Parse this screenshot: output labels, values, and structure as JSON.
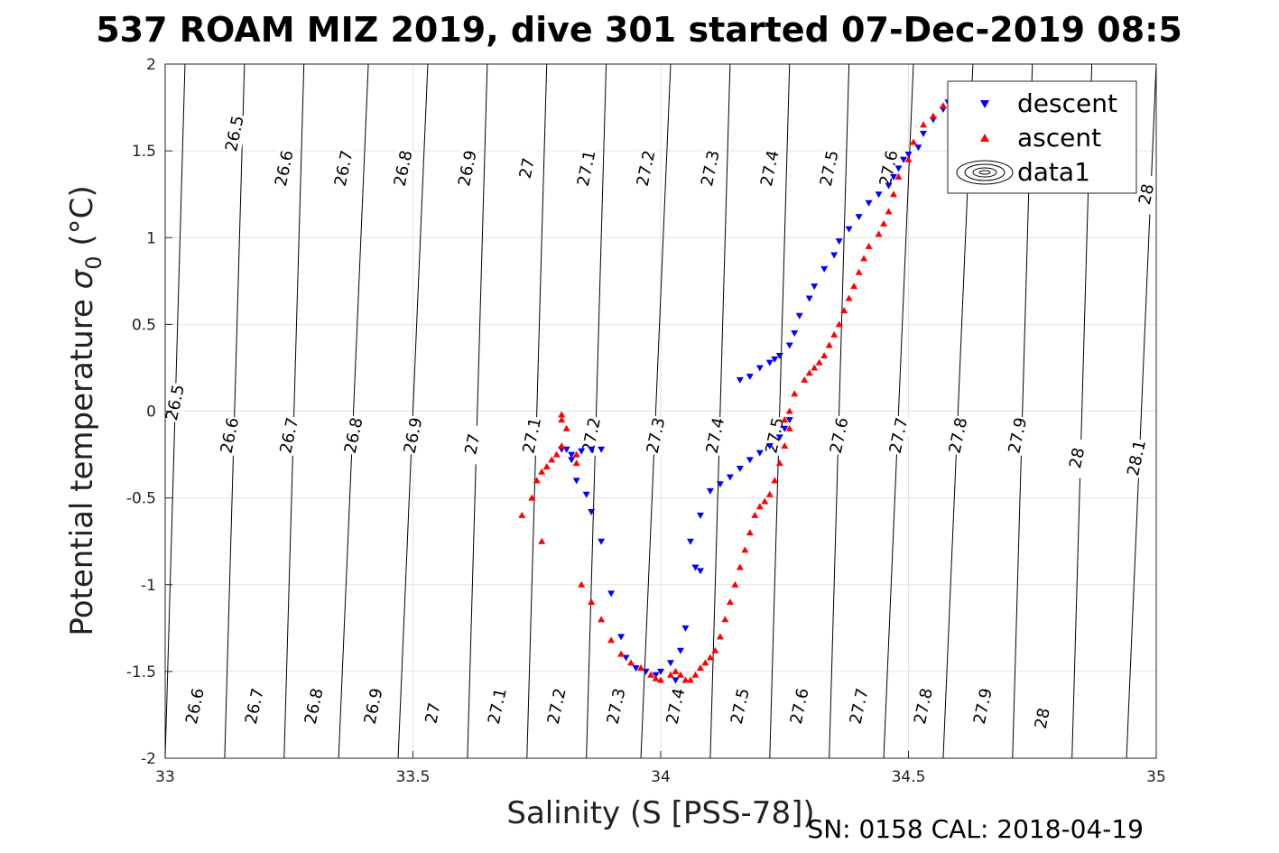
{
  "chart_data": {
    "type": "scatter",
    "title": "537 ROAM MIZ 2019, dive 301 started 07-Dec-2019 08:5",
    "xlabel": "Salinity (S [PSS-78])",
    "ylabel_main": "Potential temperature ",
    "ylabel_sigma": "σ",
    "ylabel_sub": "0",
    "ylabel_unit": " (°C)",
    "footer": "SN: 0158  CAL: 2018-04-19",
    "xlim": [
      33,
      35
    ],
    "ylim": [
      -2,
      2
    ],
    "xticks": [
      "33",
      "33.5",
      "34",
      "34.5",
      "35"
    ],
    "xtick_values": [
      33,
      33.5,
      34,
      34.5,
      35
    ],
    "yticks": [
      "-2",
      "-1.5",
      "-1",
      "-0.5",
      "0",
      "0.5",
      "1",
      "1.5",
      "2"
    ],
    "ytick_values": [
      -2,
      -1.5,
      -1,
      -0.5,
      0,
      0.5,
      1,
      1.5,
      2
    ],
    "grid": true,
    "legend_position": "top-right",
    "legend": [
      "descent",
      "ascent",
      "data1"
    ],
    "contours": [
      {
        "sigma": 26.5,
        "s_at_t0": 33.02,
        "s_at_t2": 33.04
      },
      {
        "sigma": 26.6,
        "s_at_t0": 33.14,
        "s_at_t2": 33.16
      },
      {
        "sigma": 26.7,
        "s_at_t0": 33.26,
        "s_at_t2": 33.28
      },
      {
        "sigma": 26.8,
        "s_at_t0": 33.38,
        "s_at_t2": 33.41
      },
      {
        "sigma": 26.9,
        "s_at_t0": 33.5,
        "s_at_t2": 33.53
      },
      {
        "sigma": 27.0,
        "s_at_t0": 33.63,
        "s_at_t2": 33.65
      },
      {
        "sigma": 27.1,
        "s_at_t0": 33.75,
        "s_at_t2": 33.77
      },
      {
        "sigma": 27.2,
        "s_at_t0": 33.87,
        "s_at_t2": 33.89
      },
      {
        "sigma": 27.3,
        "s_at_t0": 33.99,
        "s_at_t2": 34.02
      },
      {
        "sigma": 27.4,
        "s_at_t0": 34.12,
        "s_at_t2": 34.14
      },
      {
        "sigma": 27.5,
        "s_at_t0": 34.24,
        "s_at_t2": 34.26
      },
      {
        "sigma": 27.6,
        "s_at_t0": 34.36,
        "s_at_t2": 34.38
      },
      {
        "sigma": 27.7,
        "s_at_t0": 34.48,
        "s_at_t2": 34.51
      },
      {
        "sigma": 27.8,
        "s_at_t0": 34.6,
        "s_at_t2": 34.63
      },
      {
        "sigma": 27.9,
        "s_at_t0": 34.73,
        "s_at_t2": 34.75
      },
      {
        "sigma": 28.0,
        "s_at_t0": 34.85,
        "s_at_t2": 34.87
      },
      {
        "sigma": 28.1,
        "s_at_t0": 34.97,
        "s_at_t2": 35.0
      }
    ],
    "contour_labels": [
      {
        "text": "26.5",
        "s": 33.14,
        "t": 1.6
      },
      {
        "text": "26.6",
        "s": 33.24,
        "t": 1.4
      },
      {
        "text": "26.7",
        "s": 33.36,
        "t": 1.4
      },
      {
        "text": "26.8",
        "s": 33.48,
        "t": 1.4
      },
      {
        "text": "26.9",
        "s": 33.61,
        "t": 1.4
      },
      {
        "text": "27",
        "s": 33.73,
        "t": 1.4
      },
      {
        "text": "27.1",
        "s": 33.85,
        "t": 1.4
      },
      {
        "text": "27.2",
        "s": 33.97,
        "t": 1.4
      },
      {
        "text": "27.3",
        "s": 34.1,
        "t": 1.4
      },
      {
        "text": "27.4",
        "s": 34.22,
        "t": 1.4
      },
      {
        "text": "27.5",
        "s": 34.34,
        "t": 1.4
      },
      {
        "text": "27.6",
        "s": 34.46,
        "t": 1.4
      },
      {
        "text": "28",
        "s": 34.98,
        "t": 1.25
      },
      {
        "text": "26.5",
        "s": 33.02,
        "t": 0.05
      },
      {
        "text": "26.6",
        "s": 33.13,
        "t": -0.14
      },
      {
        "text": "26.7",
        "s": 33.25,
        "t": -0.14
      },
      {
        "text": "26.8",
        "s": 33.38,
        "t": -0.14
      },
      {
        "text": "26.9",
        "s": 33.5,
        "t": -0.14
      },
      {
        "text": "27",
        "s": 33.62,
        "t": -0.19
      },
      {
        "text": "27.1",
        "s": 33.74,
        "t": -0.14
      },
      {
        "text": "27.2",
        "s": 33.86,
        "t": -0.14
      },
      {
        "text": "27.3",
        "s": 33.99,
        "t": -0.14
      },
      {
        "text": "27.4",
        "s": 34.11,
        "t": -0.14
      },
      {
        "text": "27.5",
        "s": 34.23,
        "t": -0.14
      },
      {
        "text": "27.6",
        "s": 34.36,
        "t": -0.14
      },
      {
        "text": "27.7",
        "s": 34.48,
        "t": -0.14
      },
      {
        "text": "27.8",
        "s": 34.6,
        "t": -0.14
      },
      {
        "text": "27.9",
        "s": 34.72,
        "t": -0.14
      },
      {
        "text": "28",
        "s": 34.84,
        "t": -0.27
      },
      {
        "text": "28.1",
        "s": 34.96,
        "t": -0.27
      },
      {
        "text": "26.6",
        "s": 33.06,
        "t": -1.7
      },
      {
        "text": "26.7",
        "s": 33.18,
        "t": -1.7
      },
      {
        "text": "26.8",
        "s": 33.3,
        "t": -1.7
      },
      {
        "text": "26.9",
        "s": 33.42,
        "t": -1.7
      },
      {
        "text": "27",
        "s": 33.54,
        "t": -1.74
      },
      {
        "text": "27.1",
        "s": 33.67,
        "t": -1.7
      },
      {
        "text": "27.2",
        "s": 33.79,
        "t": -1.7
      },
      {
        "text": "27.3",
        "s": 33.91,
        "t": -1.7
      },
      {
        "text": "27.4",
        "s": 34.03,
        "t": -1.7
      },
      {
        "text": "27.5",
        "s": 34.16,
        "t": -1.7
      },
      {
        "text": "27.6",
        "s": 34.28,
        "t": -1.7
      },
      {
        "text": "27.7",
        "s": 34.4,
        "t": -1.7
      },
      {
        "text": "27.8",
        "s": 34.53,
        "t": -1.7
      },
      {
        "text": "27.9",
        "s": 34.65,
        "t": -1.7
      },
      {
        "text": "28",
        "s": 34.77,
        "t": -1.77
      }
    ],
    "series": [
      {
        "name": "descent",
        "marker": "triangle-down",
        "color": "#0000ff",
        "s": [
          34.58,
          34.57,
          34.55,
          34.53,
          34.52,
          34.5,
          34.49,
          34.48,
          34.47,
          34.46,
          34.44,
          34.42,
          34.4,
          34.38,
          34.36,
          34.35,
          34.33,
          34.31,
          34.3,
          34.28,
          34.27,
          34.26,
          34.24,
          34.23,
          34.22,
          34.2,
          34.18,
          34.16,
          34.26,
          34.25,
          34.24,
          34.22,
          34.2,
          34.18,
          34.16,
          34.14,
          34.12,
          34.1,
          34.08,
          34.07,
          34.05,
          34.04,
          34.02,
          34.0,
          33.99,
          33.97,
          33.95,
          33.93,
          33.92,
          33.9,
          33.88,
          33.86,
          33.85,
          33.83,
          33.82,
          33.81,
          33.8,
          33.82,
          33.84,
          33.86,
          33.88,
          34.06,
          34.08,
          34.03
        ],
        "t": [
          1.78,
          1.74,
          1.68,
          1.6,
          1.52,
          1.48,
          1.45,
          1.4,
          1.35,
          1.3,
          1.25,
          1.2,
          1.12,
          1.05,
          0.98,
          0.9,
          0.82,
          0.72,
          0.65,
          0.55,
          0.45,
          0.38,
          0.32,
          0.3,
          0.28,
          0.25,
          0.2,
          0.18,
          -0.05,
          -0.1,
          -0.15,
          -0.2,
          -0.24,
          -0.28,
          -0.33,
          -0.38,
          -0.42,
          -0.46,
          -0.6,
          -0.9,
          -1.25,
          -1.38,
          -1.45,
          -1.5,
          -1.52,
          -1.5,
          -1.48,
          -1.42,
          -1.3,
          -1.05,
          -0.75,
          -0.58,
          -0.48,
          -0.4,
          -0.28,
          -0.22,
          -0.22,
          -0.25,
          -0.23,
          -0.22,
          -0.22,
          -0.75,
          -0.92,
          -1.55
        ]
      },
      {
        "name": "ascent",
        "marker": "triangle-up",
        "color": "#ff0000",
        "s": [
          34.59,
          34.57,
          34.55,
          34.53,
          34.51,
          34.5,
          34.48,
          34.47,
          34.46,
          34.45,
          34.44,
          34.42,
          34.41,
          34.4,
          34.39,
          34.38,
          34.37,
          34.36,
          34.35,
          34.34,
          34.33,
          34.32,
          34.31,
          34.3,
          34.29,
          34.27,
          34.26,
          34.25,
          34.26,
          34.25,
          34.24,
          34.23,
          34.22,
          34.21,
          34.2,
          34.19,
          34.18,
          34.17,
          34.16,
          34.15,
          34.14,
          34.13,
          34.12,
          34.11,
          34.1,
          34.09,
          34.08,
          34.07,
          34.06,
          34.05,
          34.04,
          34.03,
          34.02,
          34.0,
          33.99,
          33.98,
          33.96,
          33.94,
          33.92,
          33.9,
          33.88,
          33.86,
          33.84,
          33.83,
          33.81,
          33.8,
          33.79,
          33.8,
          33.78,
          33.77,
          33.76,
          33.75,
          33.74,
          33.8,
          33.83,
          33.76,
          33.72
        ],
        "t": [
          1.8,
          1.76,
          1.7,
          1.65,
          1.55,
          1.45,
          1.35,
          1.25,
          1.15,
          1.08,
          1.02,
          0.95,
          0.88,
          0.8,
          0.72,
          0.65,
          0.58,
          0.5,
          0.44,
          0.38,
          0.32,
          0.28,
          0.25,
          0.22,
          0.18,
          0.1,
          0.0,
          -0.05,
          -0.1,
          -0.2,
          -0.3,
          -0.4,
          -0.48,
          -0.52,
          -0.55,
          -0.6,
          -0.7,
          -0.8,
          -0.9,
          -1.0,
          -1.1,
          -1.2,
          -1.3,
          -1.38,
          -1.42,
          -1.45,
          -1.48,
          -1.52,
          -1.55,
          -1.55,
          -1.52,
          -1.5,
          -1.52,
          -1.55,
          -1.54,
          -1.52,
          -1.48,
          -1.45,
          -1.4,
          -1.32,
          -1.2,
          -1.1,
          -1.0,
          -0.3,
          -0.1,
          -0.05,
          -0.25,
          -0.2,
          -0.28,
          -0.32,
          -0.35,
          -0.4,
          -0.5,
          -0.02,
          -0.25,
          -0.75,
          -0.6
        ]
      }
    ]
  }
}
